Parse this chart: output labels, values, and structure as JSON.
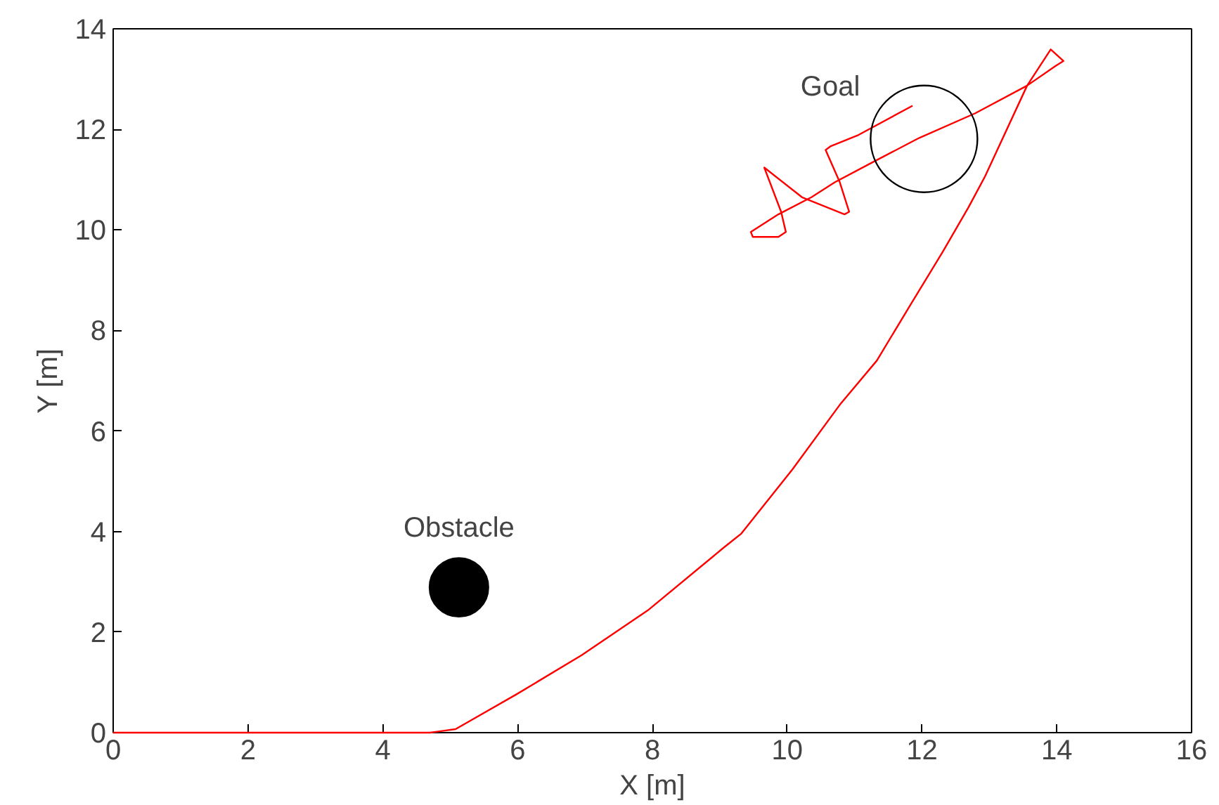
{
  "chart_data": {
    "type": "line",
    "xlabel": "X [m]",
    "ylabel": "Y [m]",
    "xlim": [
      0,
      16
    ],
    "ylim": [
      0,
      14
    ],
    "xticks": [
      0,
      2,
      4,
      6,
      8,
      10,
      12,
      14,
      16
    ],
    "yticks": [
      0,
      2,
      4,
      6,
      8,
      10,
      12,
      14
    ],
    "grid": false,
    "line_style": "solid",
    "series": [
      {
        "color": "#ff0000",
        "x": [
          0,
          4.7,
          4.86,
          5.08,
          5.98,
          6.95,
          7.93,
          9.04,
          9.32,
          10.08,
          10.78,
          11.33,
          11.82,
          12.31,
          12.69,
          12.93,
          13.56,
          13.91,
          14.1,
          13.98,
          13.56,
          12.79,
          11.96,
          11.26,
          10.71,
          10.36,
          9.87,
          9.46,
          9.49,
          9.87,
          9.98,
          9.91,
          9.66,
          10.22,
          10.85,
          10.92,
          10.78,
          10.57,
          10.64,
          11.06,
          11.86
        ],
        "values": [
          0,
          0,
          0.03,
          0.07,
          0.76,
          1.54,
          2.43,
          3.66,
          3.96,
          5.24,
          6.52,
          7.4,
          8.49,
          9.57,
          10.45,
          11.05,
          12.87,
          13.59,
          13.36,
          13.26,
          12.87,
          12.32,
          11.83,
          11.34,
          10.95,
          10.65,
          10.31,
          9.96,
          9.86,
          9.86,
          9.96,
          10.36,
          11.24,
          10.65,
          10.31,
          10.36,
          10.95,
          11.59,
          11.66,
          11.89,
          12.47
        ]
      },
      {
        "type": "bubble",
        "color": "#000000",
        "x": [
          12.03
        ],
        "values": [
          11.81
        ],
        "sizes": [
          1
        ]
      },
      {
        "type": "scatter",
        "marker": "circle",
        "color": "#000000",
        "x": [
          5.13
        ],
        "values": [
          2.89
        ]
      }
    ],
    "annotations": [
      {
        "text": "Goal",
        "x": 10.64,
        "y": 11.66
      },
      {
        "text": "Obstacle",
        "x": 5.13,
        "y": 2.89
      }
    ]
  }
}
